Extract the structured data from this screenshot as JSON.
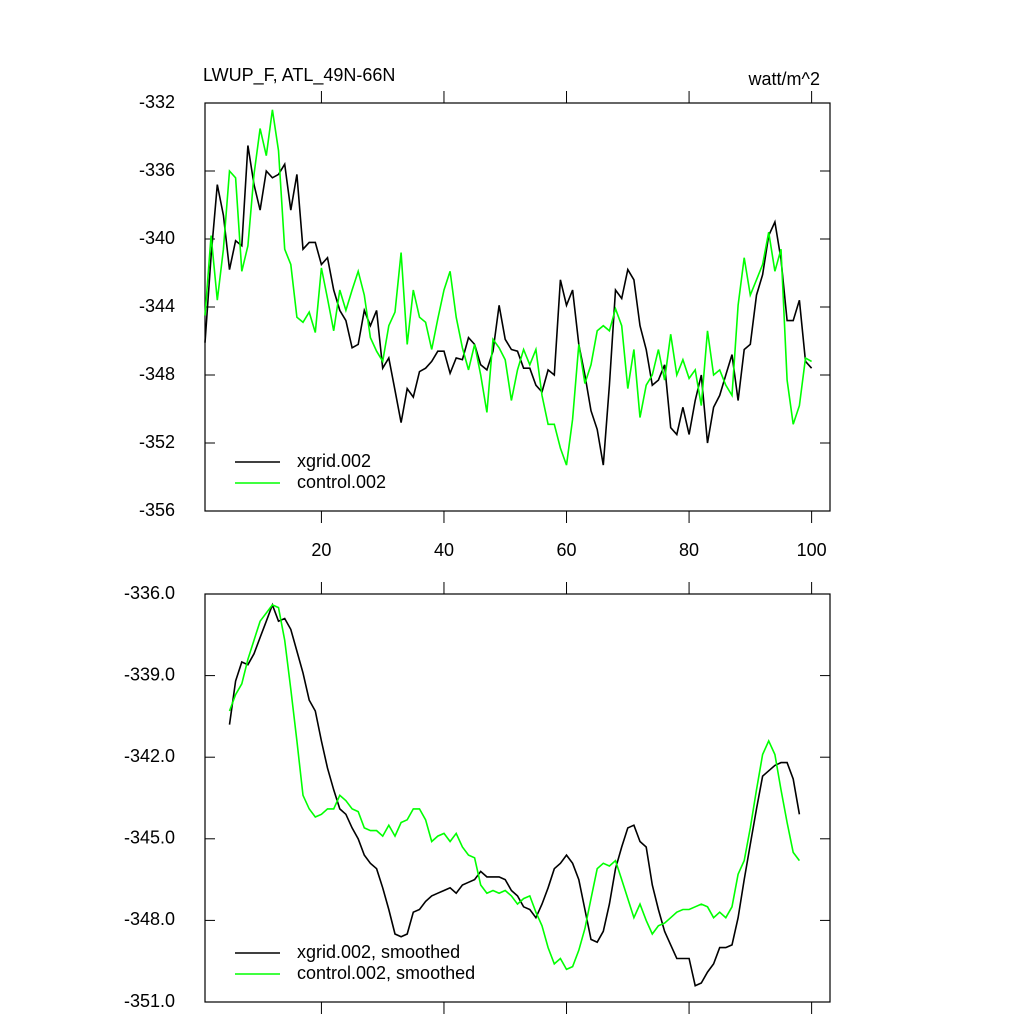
{
  "chart_data": [
    {
      "type": "line",
      "title": "LWUP_F, ATL_49N-66N",
      "units": "watt/m^2",
      "x": [
        1,
        2,
        3,
        4,
        5,
        6,
        7,
        8,
        9,
        10,
        11,
        12,
        13,
        14,
        15,
        16,
        17,
        18,
        19,
        20,
        21,
        22,
        23,
        24,
        25,
        26,
        27,
        28,
        29,
        30,
        31,
        32,
        33,
        34,
        35,
        36,
        37,
        38,
        39,
        40,
        41,
        42,
        43,
        44,
        45,
        46,
        47,
        48,
        49,
        50,
        51,
        52,
        53,
        54,
        55,
        56,
        57,
        58,
        59,
        60,
        61,
        62,
        63,
        64,
        65,
        66,
        67,
        68,
        69,
        70,
        71,
        72,
        73,
        74,
        75,
        76,
        77,
        78,
        79,
        80,
        81,
        82,
        83,
        84,
        85,
        86,
        87,
        88,
        89,
        90,
        91,
        92,
        93,
        94,
        95,
        96,
        97,
        98,
        99,
        100
      ],
      "series": [
        {
          "name": "xgrid.002",
          "color": "#000000",
          "values": [
            -346.1,
            -341,
            -336.8,
            -338.6,
            -341.8,
            -340.1,
            -340.4,
            -334.5,
            -336.8,
            -338.3,
            -336,
            -336.4,
            -336.2,
            -335.6,
            -338.3,
            -336.2,
            -340.6,
            -340.2,
            -340.2,
            -341.5,
            -341.1,
            -343,
            -344.2,
            -344.8,
            -346.4,
            -346.2,
            -344.2,
            -345.1,
            -344.2,
            -347.6,
            -347,
            -348.9,
            -350.8,
            -348.8,
            -349.3,
            -347.8,
            -347.6,
            -347.2,
            -346.6,
            -346.6,
            -347.9,
            -347,
            -347.1,
            -345.8,
            -346.2,
            -347.4,
            -347.7,
            -346.6,
            -343.9,
            -345.9,
            -346.5,
            -346.6,
            -347.6,
            -347.6,
            -348.6,
            -349,
            -347.7,
            -348,
            -342.4,
            -343.9,
            -343,
            -346.2,
            -348,
            -350.1,
            -351.2,
            -353.3,
            -348.6,
            -343,
            -343.5,
            -341.8,
            -342.4,
            -345.1,
            -346.5,
            -348.6,
            -348.3,
            -347.4,
            -351.1,
            -351.5,
            -349.9,
            -351.5,
            -349.5,
            -348,
            -352,
            -349.9,
            -349.2,
            -348,
            -346.8,
            -349.5,
            -346.5,
            -346.2,
            -343.3,
            -342.1,
            -339.8,
            -339,
            -341.2,
            -344.8,
            -344.8,
            -343.6,
            -347.2,
            -347.6
          ]
        },
        {
          "name": "control.002",
          "color": "#00ff00",
          "values": [
            -344.5,
            -339.8,
            -343.6,
            -340.6,
            -336,
            -336.4,
            -341.9,
            -340.4,
            -336.2,
            -333.5,
            -335.1,
            -332.4,
            -334.8,
            -340.6,
            -341.5,
            -344.6,
            -344.9,
            -344.3,
            -345.5,
            -341.7,
            -343.5,
            -345.4,
            -343,
            -344.2,
            -343,
            -341.9,
            -343.3,
            -345.8,
            -346.6,
            -347.2,
            -345.1,
            -344.3,
            -340.8,
            -346.2,
            -343,
            -344.6,
            -344.9,
            -346.5,
            -344.7,
            -343,
            -341.9,
            -344.6,
            -346.4,
            -347.7,
            -346.2,
            -348,
            -350.2,
            -345.9,
            -346.4,
            -347.1,
            -349.5,
            -347.7,
            -346.5,
            -347.4,
            -346.5,
            -349.2,
            -350.9,
            -350.9,
            -352.3,
            -353.3,
            -350.6,
            -346.2,
            -348.5,
            -347.4,
            -345.4,
            -345.1,
            -345.4,
            -344.1,
            -345.1,
            -348.8,
            -346.5,
            -350.5,
            -348.6,
            -348,
            -346.5,
            -348.3,
            -345.6,
            -348,
            -347.1,
            -348.2,
            -347.7,
            -349.8,
            -345.4,
            -348,
            -347.7,
            -348.6,
            -349.2,
            -343.9,
            -341.1,
            -343.3,
            -342.4,
            -341.5,
            -339.6,
            -341.9,
            -340.6,
            -348.3,
            -350.9,
            -349.8,
            -347,
            -347.2
          ]
        }
      ],
      "xlim": [
        1,
        103
      ],
      "xticks": [
        20,
        40,
        60,
        80,
        100
      ],
      "ylim": [
        -356,
        -332
      ],
      "yticks": [
        -356,
        -352,
        -348,
        -344,
        -340,
        -336,
        -332
      ],
      "legend": "lower left"
    },
    {
      "type": "line",
      "x": [
        5,
        6,
        7,
        8,
        9,
        10,
        11,
        12,
        13,
        14,
        15,
        16,
        17,
        18,
        19,
        20,
        21,
        22,
        23,
        24,
        25,
        26,
        27,
        28,
        29,
        30,
        31,
        32,
        33,
        34,
        35,
        36,
        37,
        38,
        39,
        40,
        41,
        42,
        43,
        44,
        45,
        46,
        47,
        48,
        49,
        50,
        51,
        52,
        53,
        54,
        55,
        56,
        57,
        58,
        59,
        60,
        61,
        62,
        63,
        64,
        65,
        66,
        67,
        68,
        69,
        70,
        71,
        72,
        73,
        74,
        75,
        76,
        77,
        78,
        79,
        80,
        81,
        82,
        83,
        84,
        85,
        86,
        87,
        88,
        89,
        90,
        91,
        92,
        93,
        94,
        95,
        96,
        97,
        98
      ],
      "series": [
        {
          "name": "xgrid.002, smoothed",
          "color": "#000000",
          "values": [
            -340.8,
            -339.2,
            -338.5,
            -338.6,
            -338.2,
            -337.6,
            -337.0,
            -336.4,
            -337.0,
            -336.9,
            -337.3,
            -338.1,
            -338.9,
            -339.9,
            -340.3,
            -341.4,
            -342.4,
            -343.2,
            -343.9,
            -344.1,
            -344.6,
            -345.0,
            -345.6,
            -345.9,
            -346.1,
            -346.8,
            -347.6,
            -348.5,
            -348.6,
            -348.5,
            -347.7,
            -347.6,
            -347.3,
            -347.1,
            -347.0,
            -346.9,
            -346.8,
            -347.0,
            -346.7,
            -346.6,
            -346.5,
            -346.2,
            -346.4,
            -346.4,
            -346.4,
            -346.5,
            -346.9,
            -347.1,
            -347.5,
            -347.6,
            -347.9,
            -347.4,
            -346.8,
            -346.1,
            -345.9,
            -345.6,
            -345.9,
            -346.5,
            -347.6,
            -348.7,
            -348.8,
            -348.4,
            -347.4,
            -346.1,
            -345.3,
            -344.6,
            -344.5,
            -345.1,
            -345.3,
            -346.7,
            -347.6,
            -348.4,
            -348.9,
            -349.4,
            -349.4,
            -349.4,
            -350.4,
            -350.3,
            -349.9,
            -349.6,
            -349.0,
            -349.0,
            -348.9,
            -347.9,
            -346.5,
            -345.2,
            -343.9,
            -342.7,
            -342.5,
            -342.3,
            -342.2,
            -342.2,
            -342.8,
            -344.1
          ]
        },
        {
          "name": "control.002, smoothed",
          "color": "#00ff00",
          "values": [
            -340.3,
            -339.7,
            -339.3,
            -338.4,
            -337.7,
            -337.0,
            -336.7,
            -336.4,
            -336.5,
            -337.7,
            -339.5,
            -341.4,
            -343.4,
            -343.9,
            -344.2,
            -344.1,
            -343.9,
            -343.9,
            -343.4,
            -343.6,
            -343.9,
            -344.0,
            -344.6,
            -344.7,
            -344.7,
            -344.9,
            -344.5,
            -344.9,
            -344.4,
            -344.3,
            -343.9,
            -343.9,
            -344.3,
            -345.1,
            -344.9,
            -344.8,
            -345.1,
            -344.8,
            -345.3,
            -345.6,
            -345.7,
            -346.7,
            -347.0,
            -346.9,
            -347.0,
            -346.9,
            -347.1,
            -347.4,
            -347.2,
            -347.1,
            -347.7,
            -348.2,
            -349.0,
            -349.6,
            -349.4,
            -349.8,
            -349.7,
            -349.1,
            -348.3,
            -347.2,
            -346.1,
            -345.9,
            -346.0,
            -345.8,
            -346.5,
            -347.2,
            -347.9,
            -347.4,
            -348.0,
            -348.5,
            -348.2,
            -348.1,
            -347.9,
            -347.7,
            -347.6,
            -347.6,
            -347.5,
            -347.4,
            -347.5,
            -347.9,
            -347.7,
            -347.9,
            -347.5,
            -346.3,
            -345.8,
            -344.6,
            -343.2,
            -341.9,
            -341.4,
            -341.9,
            -343.2,
            -344.4,
            -345.5,
            -345.8
          ]
        }
      ],
      "xlim": [
        1,
        103
      ],
      "xticks": [
        20,
        40,
        60,
        80,
        100
      ],
      "xticklabels": false,
      "ylim": [
        -351,
        -336
      ],
      "yticks": [
        {
          "value": -351,
          "label": "-351.0"
        },
        {
          "value": -348,
          "label": "-348.0"
        },
        {
          "value": -345,
          "label": "-345.0"
        },
        {
          "value": -342,
          "label": "-342.0"
        },
        {
          "value": -339,
          "label": "-339.0"
        },
        {
          "value": -336,
          "label": "-336.0"
        }
      ],
      "legend": "lower left"
    }
  ]
}
